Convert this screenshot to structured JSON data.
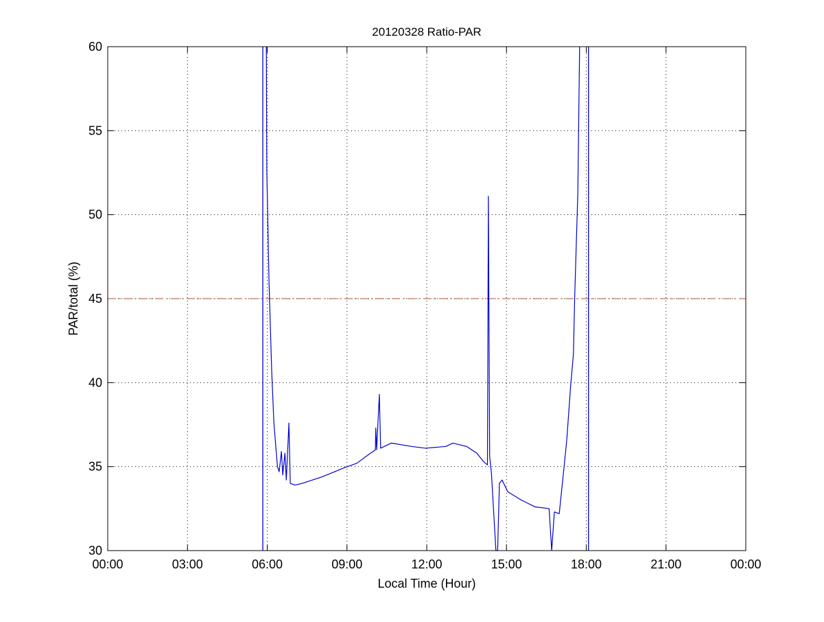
{
  "chart_data": {
    "type": "line",
    "title": "20120328 Ratio-PAR",
    "xlabel": "Local Time (Hour)",
    "ylabel": "PAR/total (%)",
    "xlim": [
      "00:00",
      "24:00"
    ],
    "ylim": [
      30,
      60
    ],
    "xticks": [
      "00:00",
      "03:00",
      "06:00",
      "09:00",
      "12:00",
      "15:00",
      "18:00",
      "21:00",
      "00:00"
    ],
    "yticks": [
      "30",
      "35",
      "40",
      "45",
      "50",
      "55",
      "60"
    ],
    "grid": true,
    "series": [
      {
        "color": "#0000cc",
        "points": [
          [
            "05:58",
            60
          ],
          [
            "05:59",
            52.6
          ],
          [
            "06:04",
            46
          ],
          [
            "06:10",
            40.7
          ],
          [
            "06:15",
            37.6
          ],
          [
            "06:23",
            35.0
          ],
          [
            "06:27",
            34.7
          ],
          [
            "06:32",
            35.9
          ],
          [
            "06:35",
            34.5
          ],
          [
            "06:40",
            35.8
          ],
          [
            "06:43",
            34.2
          ],
          [
            "06:49",
            37.6
          ],
          [
            "06:52",
            34.0
          ],
          [
            "07:03",
            33.9
          ],
          [
            "07:19",
            34.0
          ],
          [
            "08:05",
            34.4
          ],
          [
            "08:51",
            34.9
          ],
          [
            "09:22",
            35.2
          ],
          [
            "09:53",
            35.8
          ],
          [
            "10:04",
            36.0
          ],
          [
            "10:05",
            37.3
          ],
          [
            "10:07",
            36.0
          ],
          [
            "10:13",
            39.3
          ],
          [
            "10:16",
            36.1
          ],
          [
            "10:40",
            36.4
          ],
          [
            "11:26",
            36.2
          ],
          [
            "11:57",
            36.1
          ],
          [
            "12:43",
            36.2
          ],
          [
            "12:59",
            36.4
          ],
          [
            "13:30",
            36.2
          ],
          [
            "13:53",
            35.8
          ],
          [
            "14:08",
            35.3
          ],
          [
            "14:17",
            35.1
          ],
          [
            "14:19",
            51.1
          ],
          [
            "14:22",
            35.6
          ],
          [
            "14:26",
            34.6
          ],
          [
            "14:36",
            30.0
          ],
          [
            "14:40",
            30.0
          ],
          [
            "14:44",
            34.0
          ],
          [
            "14:50",
            34.2
          ],
          [
            "15:03",
            33.5
          ],
          [
            "15:34",
            33.0
          ],
          [
            "16:05",
            32.6
          ],
          [
            "16:36",
            32.5
          ],
          [
            "16:42",
            30.0
          ],
          [
            "16:48",
            32.3
          ],
          [
            "16:59",
            32.2
          ],
          [
            "17:10",
            35.0
          ],
          [
            "17:16",
            36.6
          ],
          [
            "17:25",
            39.9
          ],
          [
            "17:31",
            41.7
          ],
          [
            "17:34",
            45.2
          ],
          [
            "17:41",
            51.3
          ],
          [
            "17:45",
            60
          ]
        ]
      }
    ],
    "vertical_lines": {
      "color": "#0000cc",
      "times": [
        "05:50",
        "18:05"
      ]
    },
    "reference_line": {
      "value": 45,
      "color": "#a0522d",
      "style": "dashed"
    }
  }
}
